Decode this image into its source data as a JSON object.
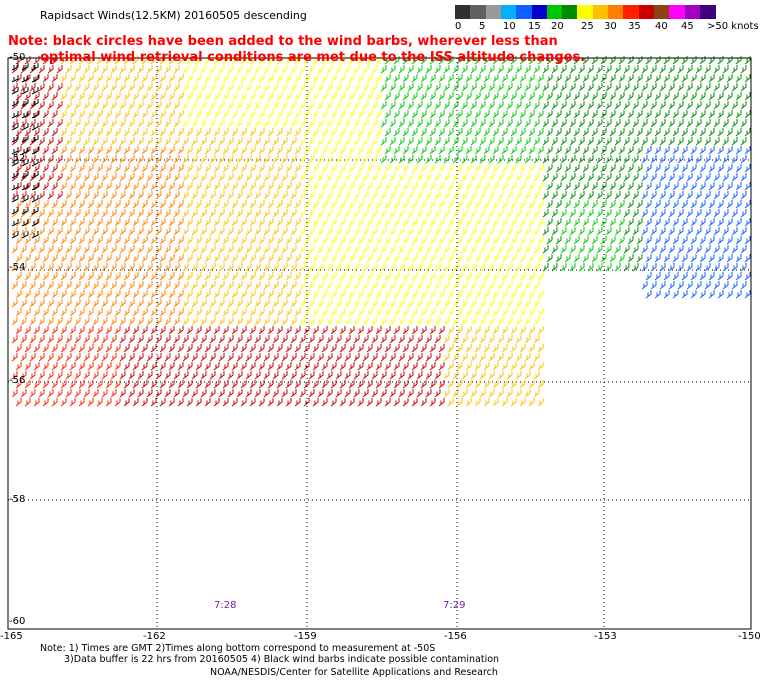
{
  "title": "Rapidsact Winds(12.5KM) 20160505 descending",
  "note_line1": "Note: black circles have been added to the wind barbs, wherever less than",
  "note_line2": "optimal wind retrieval conditions are met due to the ISS altitude changes.",
  "colorbar": {
    "labels": [
      "0",
      "5",
      "10",
      "15",
      "20",
      "25",
      "30",
      "35",
      "40",
      "45",
      ">50 knots"
    ],
    "colors": [
      "#303030",
      "#606060",
      "#9a9a9a",
      "#00b0ff",
      "#1060ff",
      "#0000c8",
      "#00c800",
      "#008c00",
      "#ffff00",
      "#ffc000",
      "#ff8000",
      "#ff2000",
      "#c80000",
      "#8b4513",
      "#ff00ff",
      "#a000c0",
      "#400080"
    ]
  },
  "map": {
    "lat_labels": [
      "-50",
      "-52",
      "-54",
      "-56",
      "-58",
      "-60"
    ],
    "lon_labels": [
      "-165",
      "-162",
      "-159",
      "-156",
      "-153",
      "-150"
    ]
  },
  "pass_times": [
    "7:28",
    "7:29"
  ],
  "footer": {
    "line1": "Note: 1) Times are GMT 2)Times along bottom correspond to measurement at -50S",
    "line2": "3)Data buffer is 22 hrs from 20160505 4) Black wind barbs indicate possible contamination",
    "line3": "NOAA/NESDIS/Center for Satellite Applications and Research"
  }
}
